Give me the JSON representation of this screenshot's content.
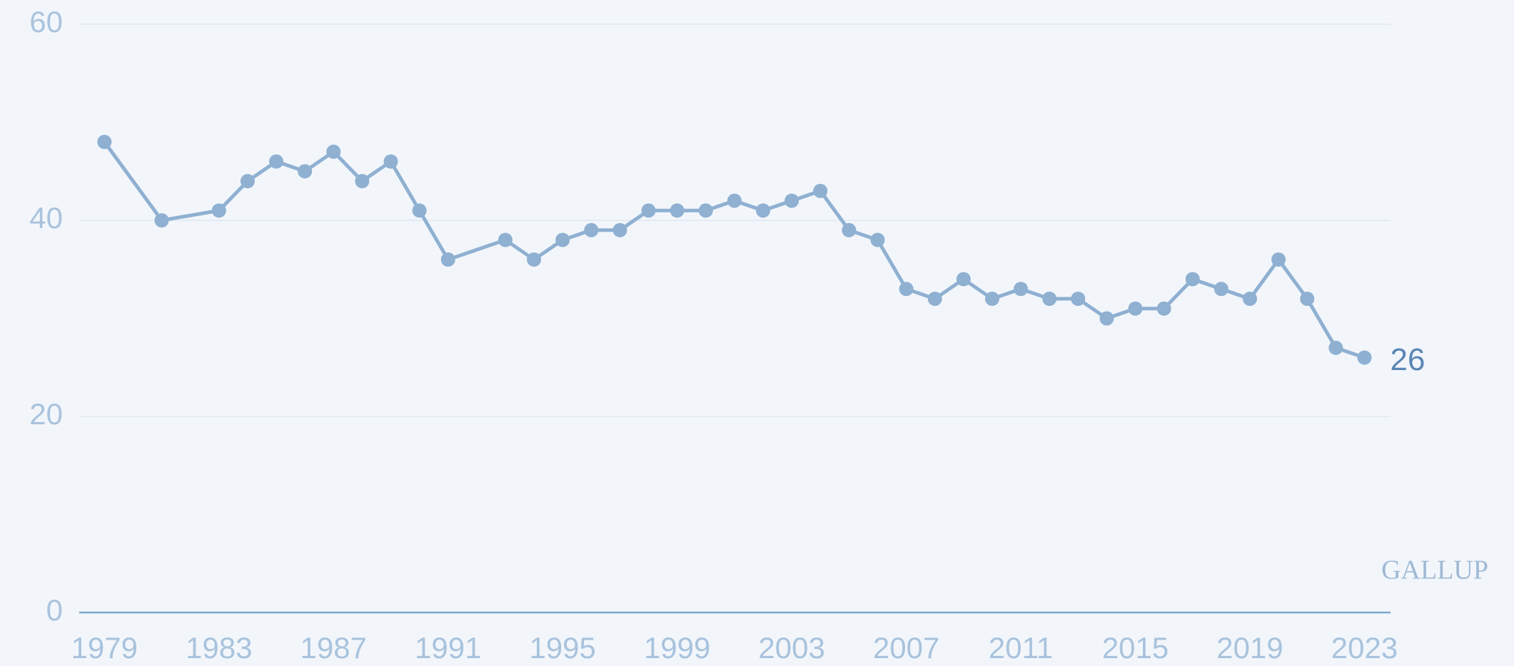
{
  "chart_data": {
    "type": "line",
    "x": [
      1979,
      1981,
      1983,
      1984,
      1985,
      1986,
      1987,
      1988,
      1989,
      1990,
      1991,
      1993,
      1994,
      1995,
      1996,
      1997,
      1998,
      1999,
      2000,
      2001,
      2002,
      2003,
      2004,
      2005,
      2006,
      2007,
      2008,
      2009,
      2010,
      2011,
      2012,
      2013,
      2014,
      2015,
      2016,
      2017,
      2018,
      2019,
      2020,
      2021,
      2022,
      2023
    ],
    "series": [
      {
        "color": "#8fb0d1",
        "values": [
          48,
          40,
          41,
          44,
          46,
          45,
          47,
          44,
          46,
          41,
          36,
          38,
          36,
          38,
          39,
          39,
          41,
          41,
          41,
          42,
          41,
          42,
          43,
          39,
          38,
          33,
          32,
          34,
          32,
          33,
          32,
          32,
          30,
          31,
          31,
          34,
          33,
          32,
          36,
          32,
          27,
          26
        ]
      }
    ],
    "xlim": [
      1978.12,
      2023.91
    ],
    "xticks": [
      1979,
      1983,
      1987,
      1991,
      1995,
      1999,
      2003,
      2007,
      2011,
      2015,
      2019,
      2023
    ],
    "ylim": [
      0,
      60
    ],
    "yticks": [
      0,
      20,
      40,
      60
    ],
    "grid": true,
    "annotations": [
      "GALLUP"
    ]
  }
}
